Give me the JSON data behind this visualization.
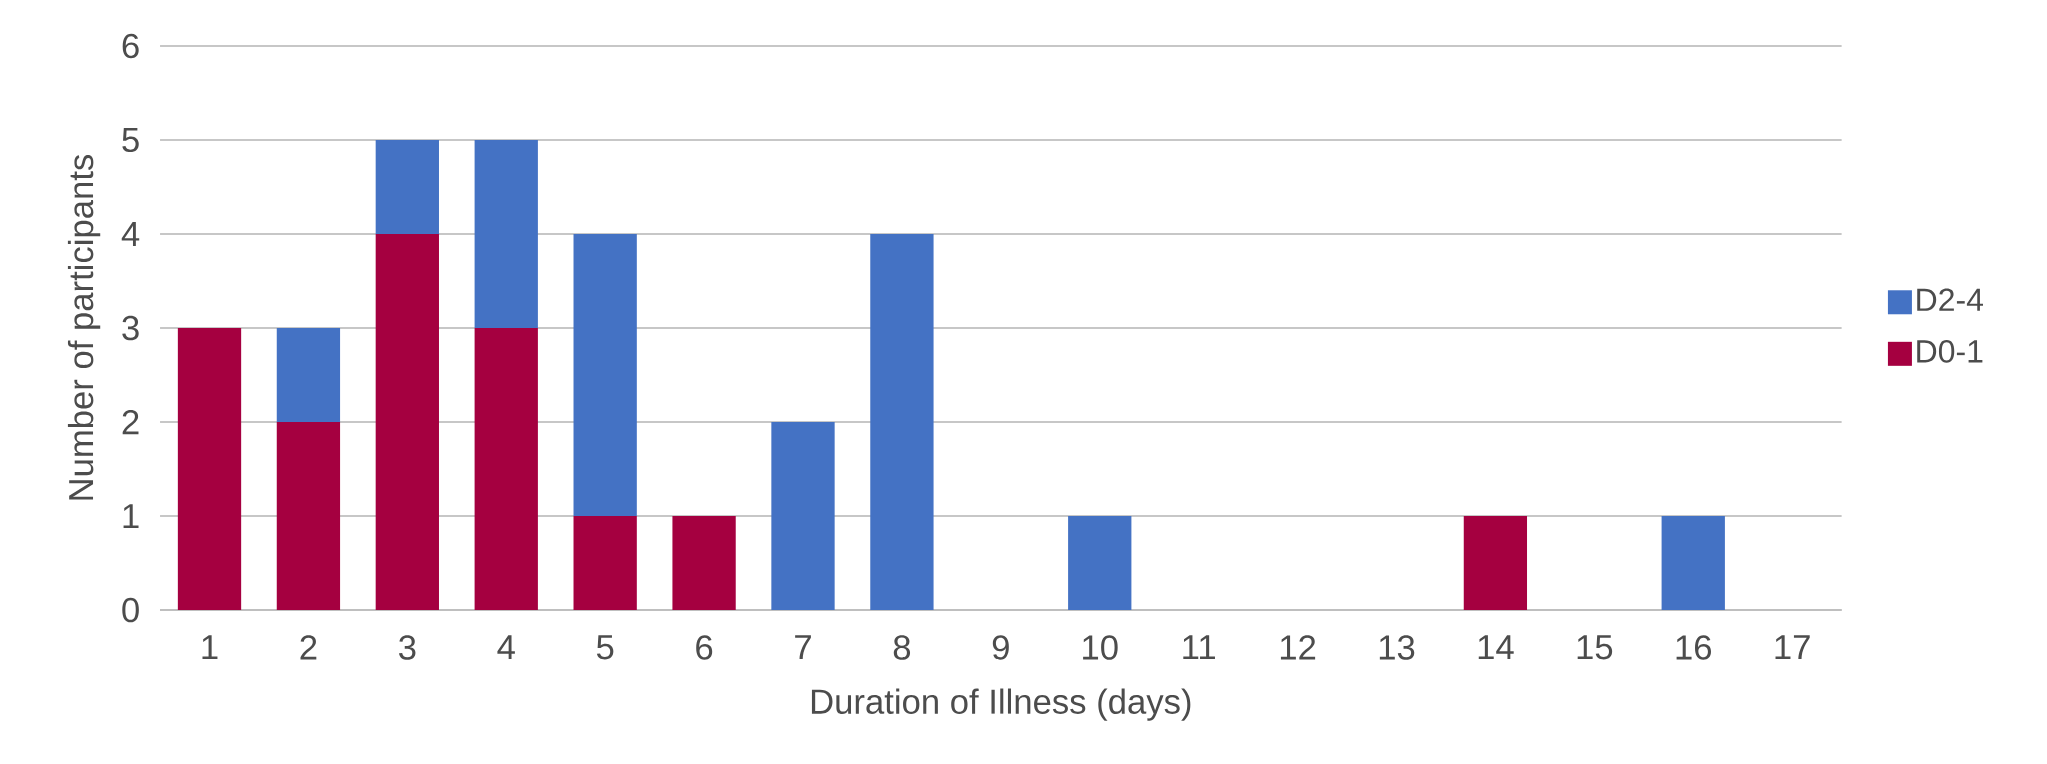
{
  "chart_data": {
    "type": "bar",
    "stacked": true,
    "xlabel": "Duration of Illness (days)",
    "ylabel": "Number of participants",
    "categories": [
      "1",
      "2",
      "3",
      "4",
      "5",
      "6",
      "7",
      "8",
      "9",
      "10",
      "11",
      "12",
      "13",
      "14",
      "15",
      "16",
      "17"
    ],
    "series": [
      {
        "name": "D0-1",
        "color": "#a50040",
        "values": [
          3,
          2,
          4,
          3,
          1,
          1,
          0,
          0,
          0,
          0,
          0,
          0,
          0,
          1,
          0,
          0,
          0
        ]
      },
      {
        "name": "D2-4",
        "color": "#4472c4",
        "values": [
          0,
          1,
          1,
          2,
          3,
          0,
          2,
          4,
          0,
          1,
          0,
          0,
          0,
          0,
          0,
          1,
          0
        ]
      }
    ],
    "ylim": [
      0,
      6
    ],
    "yticks": [
      0,
      1,
      2,
      3,
      4,
      5,
      6
    ],
    "grid": "y",
    "legend": "right"
  }
}
